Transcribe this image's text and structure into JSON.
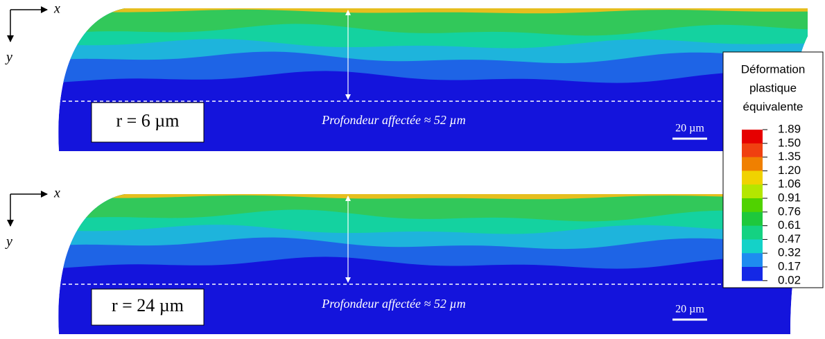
{
  "panels": [
    {
      "axis_x": "x",
      "axis_y": "y",
      "radius": "r = 6 µm",
      "depth": "Profondeur affectée ≈ 52 µm",
      "scale": "20 µm"
    },
    {
      "axis_x": "x",
      "axis_y": "y",
      "radius": "r = 24 µm",
      "depth": "Profondeur affectée ≈ 52 µm",
      "scale": "20 µm"
    }
  ],
  "legend": {
    "title": [
      "Déformation",
      "plastique",
      "équivalente"
    ],
    "levels": [
      "1.89",
      "1.50",
      "1.35",
      "1.20",
      "1.06",
      "0.91",
      "0.76",
      "0.61",
      "0.47",
      "0.32",
      "0.17",
      "0.02"
    ],
    "colors": [
      "#e60000",
      "#f04010",
      "#f08000",
      "#f0d200",
      "#b4e600",
      "#50d200",
      "#1ec83c",
      "#14d282",
      "#14d2c8",
      "#1e8cf0",
      "#1428e6"
    ]
  }
}
